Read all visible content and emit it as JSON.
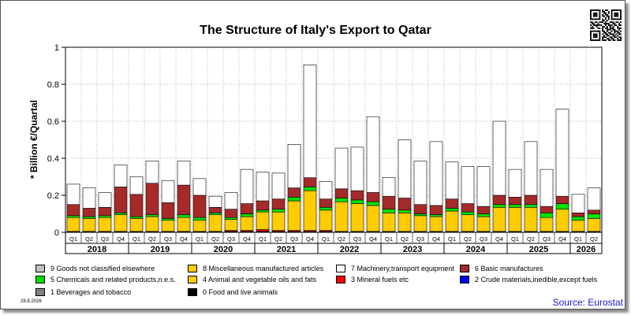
{
  "chart_data": {
    "type": "bar",
    "stacked": true,
    "title": "The Structure of Italy's Export to Qatar",
    "ylabel": "* Billion €/Quartal",
    "ylim": [
      0,
      1
    ],
    "yticks": [
      "0",
      "0.2",
      "0.4",
      "0.6",
      "0.8",
      "1"
    ],
    "grid": true,
    "legend_position": "bottom",
    "quarter_labels": [
      "Q1",
      "Q2",
      "Q3",
      "Q4",
      "Q1",
      "Q2",
      "Q3",
      "Q4",
      "Q1",
      "Q2",
      "Q3",
      "Q4",
      "Q1",
      "Q2",
      "Q3",
      "Q4",
      "Q1",
      "Q2",
      "Q3",
      "Q4",
      "Q1",
      "Q2",
      "Q3",
      "Q4",
      "Q1",
      "Q2",
      "Q3",
      "Q4",
      "Q1",
      "Q2",
      "Q3",
      "Q4",
      "Q1",
      "Q2"
    ],
    "years": [
      "2018",
      "2019",
      "2020",
      "2021",
      "2022",
      "2023",
      "2024",
      "2025",
      "2026"
    ],
    "series": [
      {
        "name": "0 Food and live animals",
        "color": "#000000",
        "values": [
          0.005,
          0.005,
          0.005,
          0.005,
          0.005,
          0.005,
          0.005,
          0.005,
          0.005,
          0.005,
          0.005,
          0.005,
          0.005,
          0.005,
          0.005,
          0.005,
          0.005,
          0.005,
          0.005,
          0.005,
          0.005,
          0.005,
          0.005,
          0.005,
          0.005,
          0.005,
          0.005,
          0.005,
          0.005,
          0.005,
          0.005,
          0.005,
          0.005,
          0.005
        ]
      },
      {
        "name": "1 Beverages and tobacco",
        "color": "#808080",
        "values": [
          0,
          0,
          0,
          0,
          0,
          0,
          0,
          0,
          0,
          0,
          0,
          0,
          0,
          0,
          0,
          0,
          0,
          0,
          0,
          0,
          0,
          0,
          0,
          0,
          0,
          0,
          0,
          0,
          0,
          0,
          0,
          0,
          0,
          0
        ]
      },
      {
        "name": "2 Crude materials,inedible,except fuels",
        "color": "#0000ff",
        "values": [
          0,
          0,
          0,
          0,
          0,
          0,
          0,
          0,
          0,
          0,
          0,
          0,
          0,
          0,
          0,
          0,
          0,
          0,
          0,
          0,
          0,
          0,
          0,
          0,
          0,
          0,
          0,
          0,
          0,
          0,
          0,
          0,
          0,
          0
        ]
      },
      {
        "name": "3 Mineral fuels etc",
        "color": "#ff0000",
        "values": [
          0,
          0,
          0,
          0,
          0,
          0,
          0,
          0,
          0,
          0,
          0.005,
          0.005,
          0.01,
          0.005,
          0.005,
          0.005,
          0.005,
          0,
          0,
          0,
          0,
          0,
          0,
          0,
          0,
          0,
          0,
          0,
          0,
          0,
          0,
          0,
          0,
          0
        ]
      },
      {
        "name": "4 Animal and vegetable oils and fats",
        "color": "#ffcc00",
        "values": [
          0.075,
          0.07,
          0.075,
          0.09,
          0.07,
          0.08,
          0.06,
          0.075,
          0.06,
          0.09,
          0.06,
          0.075,
          0.095,
          0.1,
          0.16,
          0.215,
          0.11,
          0.16,
          0.15,
          0.14,
          0.1,
          0.1,
          0.085,
          0.08,
          0.11,
          0.09,
          0.08,
          0.13,
          0.13,
          0.13,
          0.075,
          0.12,
          0.06,
          0.07
        ]
      },
      {
        "name": "5 Chemicals and related products,n.e.s.",
        "color": "#00e000",
        "values": [
          0.01,
          0.01,
          0.01,
          0.01,
          0.01,
          0.01,
          0.01,
          0.015,
          0.015,
          0.01,
          0.01,
          0.015,
          0.01,
          0.015,
          0.02,
          0.02,
          0.015,
          0.02,
          0.02,
          0.02,
          0.02,
          0.015,
          0.01,
          0.01,
          0.015,
          0.015,
          0.015,
          0.015,
          0.015,
          0.015,
          0.025,
          0.03,
          0.02,
          0.025
        ]
      },
      {
        "name": "6 Basic manufactures",
        "color": "#a52a2a",
        "values": [
          0.06,
          0.045,
          0.045,
          0.14,
          0.12,
          0.17,
          0.085,
          0.16,
          0.12,
          0.03,
          0.045,
          0.055,
          0.05,
          0.055,
          0.05,
          0.05,
          0.045,
          0.05,
          0.05,
          0.05,
          0.07,
          0.065,
          0.05,
          0.05,
          0.05,
          0.045,
          0.04,
          0.05,
          0.04,
          0.05,
          0.035,
          0.04,
          0.02,
          0.02
        ]
      },
      {
        "name": "7 Machinery,transport equipment",
        "color": "#ffffff",
        "values": [
          0.11,
          0.11,
          0.08,
          0.12,
          0.095,
          0.12,
          0.12,
          0.13,
          0.09,
          0.06,
          0.09,
          0.185,
          0.155,
          0.14,
          0.235,
          0.61,
          0.095,
          0.22,
          0.235,
          0.41,
          0.1,
          0.315,
          0.235,
          0.345,
          0.2,
          0.2,
          0.215,
          0.4,
          0.15,
          0.29,
          0.2,
          0.47,
          0.1,
          0.12
        ]
      },
      {
        "name": "8 Miscellaneous manufactured articles",
        "color": "#ffcc00",
        "values": [
          0,
          0,
          0,
          0,
          0,
          0,
          0,
          0,
          0,
          0,
          0,
          0,
          0,
          0,
          0,
          0,
          0,
          0,
          0,
          0,
          0,
          0,
          0,
          0,
          0,
          0,
          0,
          0,
          0,
          0,
          0,
          0,
          0,
          0
        ]
      },
      {
        "name": "9 Goods not classified elsewhere",
        "color": "#c0c0c0",
        "values": [
          0,
          0,
          0,
          0,
          0,
          0,
          0,
          0,
          0,
          0,
          0,
          0,
          0,
          0,
          0,
          0,
          0,
          0,
          0,
          0,
          0,
          0,
          0,
          0,
          0,
          0,
          0,
          0,
          0,
          0,
          0,
          0,
          0,
          0
        ]
      }
    ],
    "legend_order": [
      9,
      8,
      7,
      6,
      5,
      4,
      3,
      2,
      1,
      0
    ]
  },
  "footer": {
    "date": "28.8.2026",
    "source": "Source: Eurostat"
  }
}
